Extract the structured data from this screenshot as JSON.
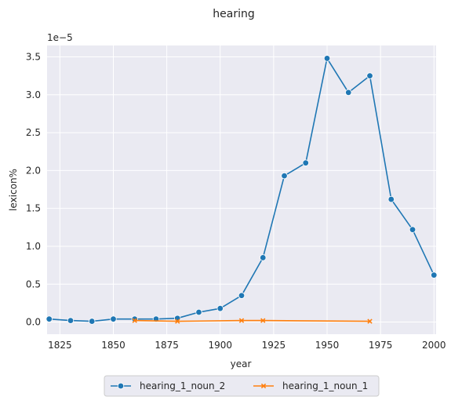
{
  "chart_data": {
    "type": "line",
    "title": "hearing",
    "xlabel": "year",
    "ylabel": "lexicon%",
    "y_offset_label": "1e−5",
    "xlim": [
      1819,
      2001
    ],
    "ylim": [
      -0.16,
      3.65
    ],
    "x_ticks": [
      1825,
      1850,
      1875,
      1900,
      1925,
      1950,
      1975,
      2000
    ],
    "y_ticks": [
      0.0,
      0.5,
      1.0,
      1.5,
      2.0,
      2.5,
      3.0,
      3.5
    ],
    "x_tick_labels": [
      "1825",
      "1850",
      "1875",
      "1900",
      "1925",
      "1950",
      "1975",
      "2000"
    ],
    "y_tick_labels": [
      "0.0",
      "0.5",
      "1.0",
      "1.5",
      "2.0",
      "2.5",
      "3.0",
      "3.5"
    ],
    "grid": true,
    "legend_position": "bottom-center",
    "series": [
      {
        "name": "hearing_1_noun_2",
        "color": "#1f77b4",
        "marker": "circle",
        "x": [
          1820,
          1830,
          1840,
          1850,
          1860,
          1870,
          1880,
          1890,
          1900,
          1910,
          1920,
          1930,
          1940,
          1950,
          1960,
          1970,
          1980,
          1990,
          2000
        ],
        "y": [
          0.04,
          0.02,
          0.01,
          0.04,
          0.04,
          0.04,
          0.05,
          0.13,
          0.18,
          0.35,
          0.85,
          1.93,
          2.1,
          3.48,
          3.03,
          3.25,
          1.62,
          1.22,
          0.62
        ]
      },
      {
        "name": "hearing_1_noun_1",
        "color": "#ff7f0e",
        "marker": "x",
        "x": [
          1860,
          1880,
          1910,
          1920,
          1970
        ],
        "y": [
          0.02,
          0.01,
          0.02,
          0.02,
          0.01
        ]
      }
    ]
  }
}
